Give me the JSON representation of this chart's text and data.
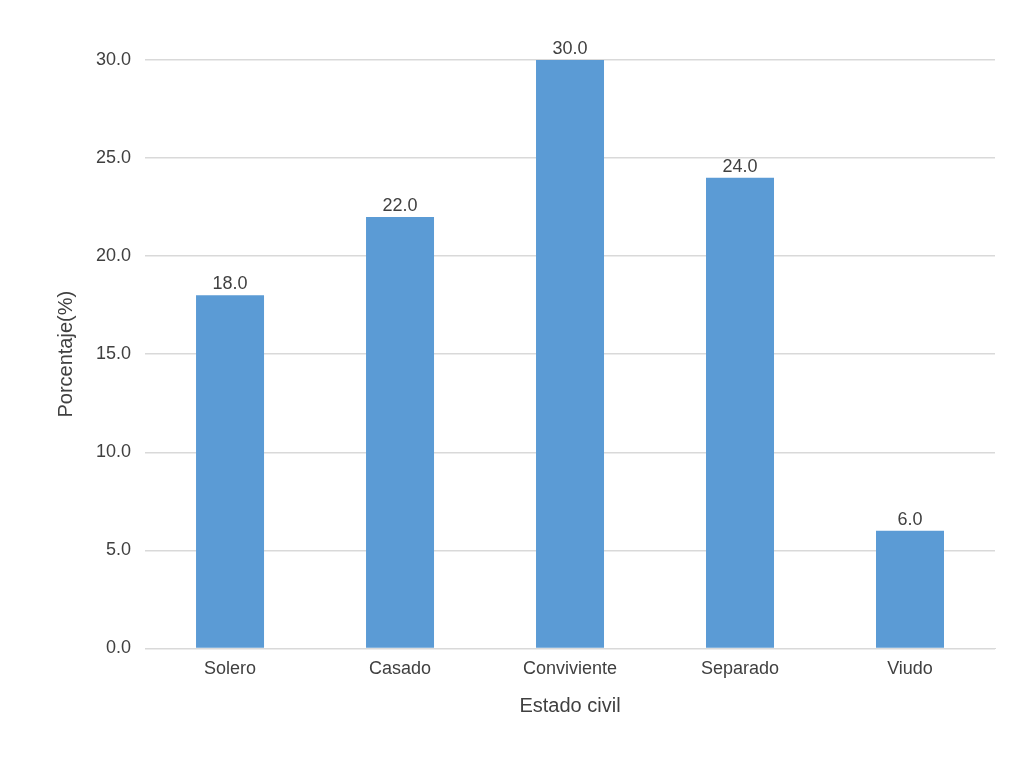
{
  "chart_data": {
    "type": "bar",
    "xlabel": "Estado civil",
    "ylabel": "Porcentaje(%)",
    "categories": [
      "Solero",
      "Casado",
      "Conviviente",
      "Separado",
      "Viudo"
    ],
    "values": [
      18.0,
      22.0,
      30.0,
      24.0,
      6.0
    ],
    "color": "#5b9bd5",
    "ylim": [
      0,
      30
    ],
    "yticks": [
      {
        "value": 0,
        "label": "0.0"
      },
      {
        "value": 5,
        "label": "5.0"
      },
      {
        "value": 10,
        "label": "10.0"
      },
      {
        "value": 15,
        "label": "15.0"
      },
      {
        "value": 20,
        "label": "20.0"
      },
      {
        "value": 25,
        "label": "25.0"
      },
      {
        "value": 30,
        "label": "30.0"
      }
    ],
    "value_labels": [
      "18.0",
      "22.0",
      "30.0",
      "24.0",
      "6.0"
    ],
    "grid": "y",
    "legend": false
  }
}
